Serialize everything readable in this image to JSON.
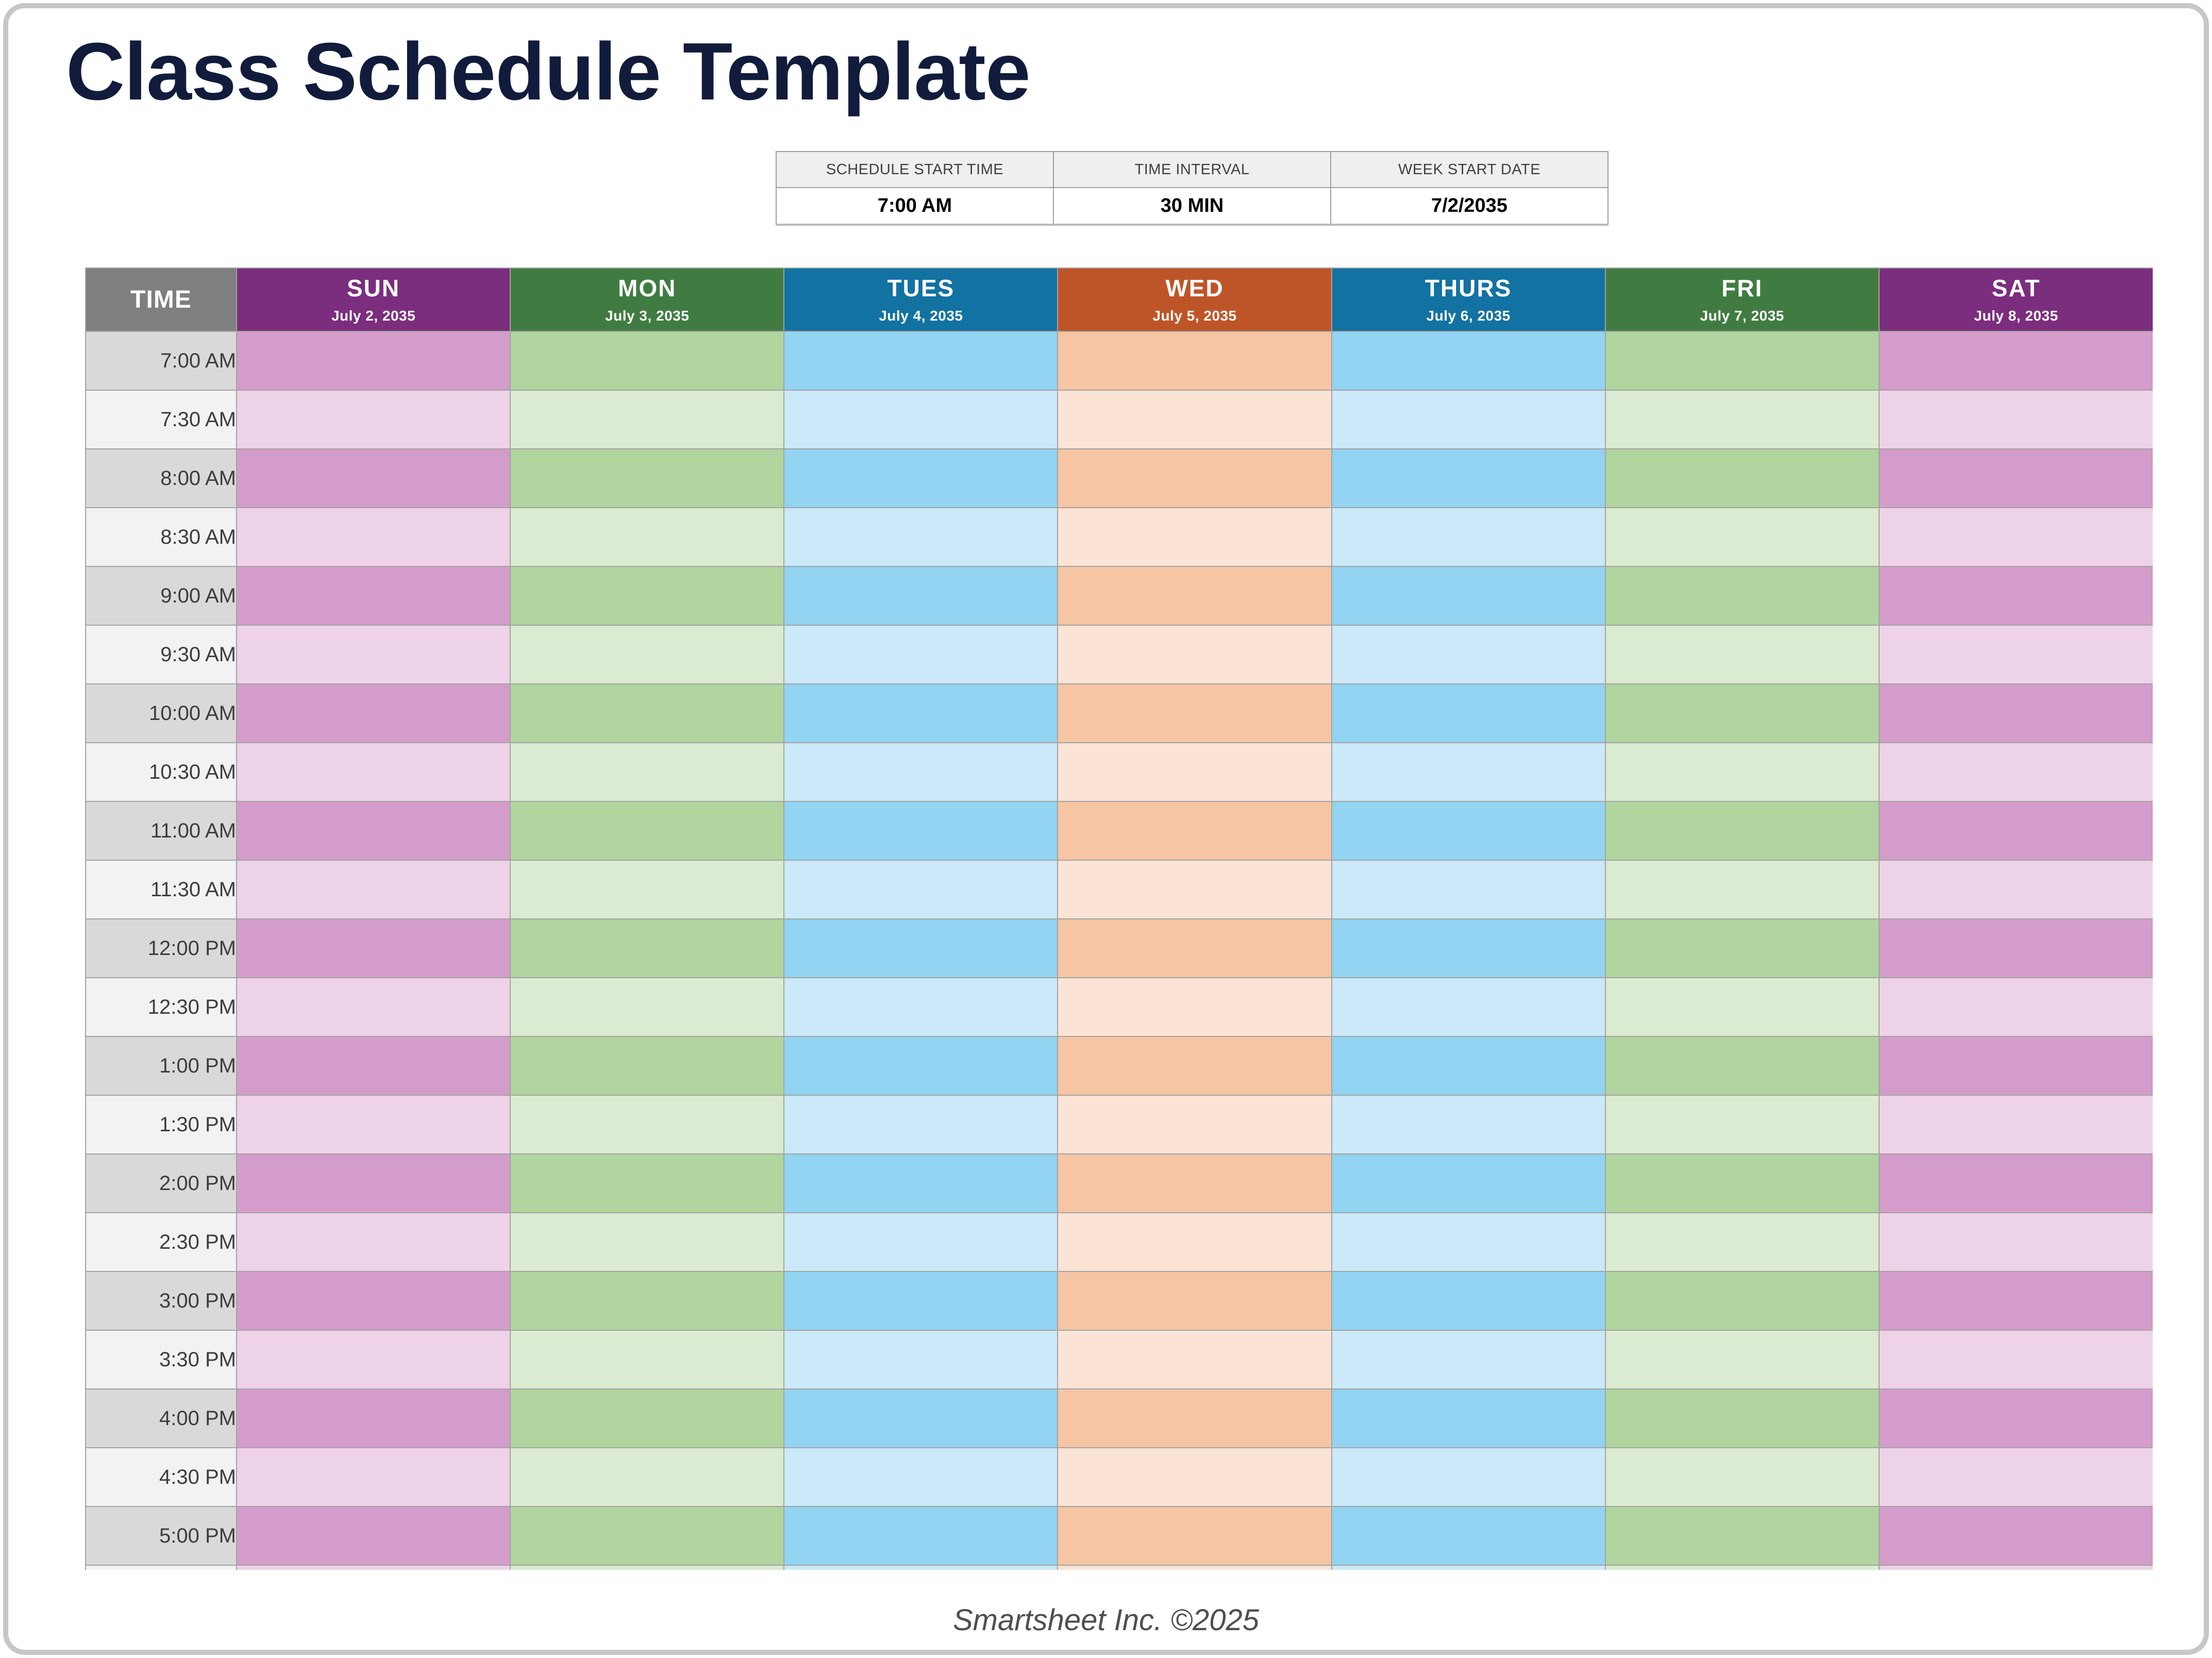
{
  "title": "Class Schedule Template",
  "settings": {
    "columns": [
      {
        "label": "SCHEDULE START TIME",
        "value": "7:00 AM"
      },
      {
        "label": "TIME INTERVAL",
        "value": "30 MIN"
      },
      {
        "label": "WEEK START DATE",
        "value": "7/2/2035"
      }
    ]
  },
  "schedule": {
    "time_header": "TIME",
    "time_header_bg": "#7f7f7f",
    "time_col": {
      "dark": "#d9d9d9",
      "light": "#f2f2f2"
    },
    "days": [
      {
        "label": "SUN",
        "date": "July 2, 2035",
        "header_bg": "#7b2d7e",
        "row_dark": "#d49cca",
        "row_light": "#eed2e8"
      },
      {
        "label": "MON",
        "date": "July 3, 2035",
        "header_bg": "#407c41",
        "row_dark": "#b1d59e",
        "row_light": "#dbebd1"
      },
      {
        "label": "TUES",
        "date": "July 4, 2035",
        "header_bg": "#1272a2",
        "row_dark": "#92d4f1",
        "row_light": "#cbe9f9"
      },
      {
        "label": "WED",
        "date": "July 5, 2035",
        "header_bg": "#be5528",
        "row_dark": "#f5c5a4",
        "row_light": "#fbe3d5"
      },
      {
        "label": "THURS",
        "date": "July 6, 2035",
        "header_bg": "#1272a2",
        "row_dark": "#92d4f1",
        "row_light": "#cbe9f9"
      },
      {
        "label": "FRI",
        "date": "July 7, 2035",
        "header_bg": "#407c41",
        "row_dark": "#b1d59e",
        "row_light": "#dbebd1"
      },
      {
        "label": "SAT",
        "date": "July 8, 2035",
        "header_bg": "#7b2d7e",
        "row_dark": "#d49cca",
        "row_light": "#eed2e8"
      }
    ],
    "times": [
      "7:00 AM",
      "7:30 AM",
      "8:00 AM",
      "8:30 AM",
      "9:00 AM",
      "9:30 AM",
      "10:00 AM",
      "10:30 AM",
      "11:00 AM",
      "11:30 AM",
      "12:00 PM",
      "12:30 PM",
      "1:00 PM",
      "1:30 PM",
      "2:00 PM",
      "2:30 PM",
      "3:00 PM",
      "3:30 PM",
      "4:00 PM",
      "4:30 PM",
      "5:00 PM"
    ]
  },
  "footer": "Smartsheet Inc. ©2025",
  "colors": {
    "title": "#111c3d",
    "footer": "#4f4f4f",
    "grid_line": "#a3a3a3",
    "settings_header_bg": "#efefef"
  }
}
